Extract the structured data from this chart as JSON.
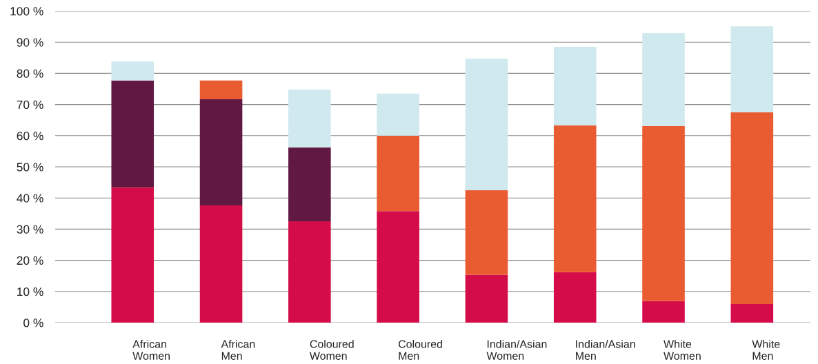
{
  "chart_data": {
    "type": "bar",
    "stacked": true,
    "categories": [
      "African\nWomen",
      "African\nMen",
      "Coloured\nWomen",
      "Coloured\nMen",
      "Indian/Asian\nWomen",
      "Indian/Asian\nMen",
      "White\nWomen",
      "White\nMen"
    ],
    "series": [
      {
        "color": "#d50c4a",
        "values": [
          43.4,
          37.6,
          32.5,
          35.8,
          15.3,
          16.2,
          6.9,
          6.0
        ]
      },
      {
        "color": "#611943",
        "values": [
          34.3,
          34.1,
          23.7,
          null,
          null,
          null,
          null,
          null
        ]
      },
      {
        "color": "#e95b30",
        "values": [
          null,
          6.0,
          null,
          24.2,
          27.2,
          47.1,
          56.2,
          61.5
        ]
      },
      {
        "color": "#d0e9ef",
        "values": [
          6.1,
          null,
          18.6,
          13.5,
          42.2,
          25.2,
          29.8,
          27.6
        ]
      }
    ],
    "ylim": [
      0,
      100
    ],
    "yticks": [
      {
        "value": 0,
        "label": "0 %"
      },
      {
        "value": 10,
        "label": "10 %"
      },
      {
        "value": 20,
        "label": "20 %"
      },
      {
        "value": 30,
        "label": "30 %"
      },
      {
        "value": 40,
        "label": "40 %"
      },
      {
        "value": 50,
        "label": "50 %"
      },
      {
        "value": 60,
        "label": "60 %"
      },
      {
        "value": 70,
        "label": "70 %"
      },
      {
        "value": 80,
        "label": "80 %"
      },
      {
        "value": 90,
        "label": "90 %"
      },
      {
        "value": 100,
        "label": "100 %"
      }
    ],
    "grid": "y",
    "legend": false
  }
}
